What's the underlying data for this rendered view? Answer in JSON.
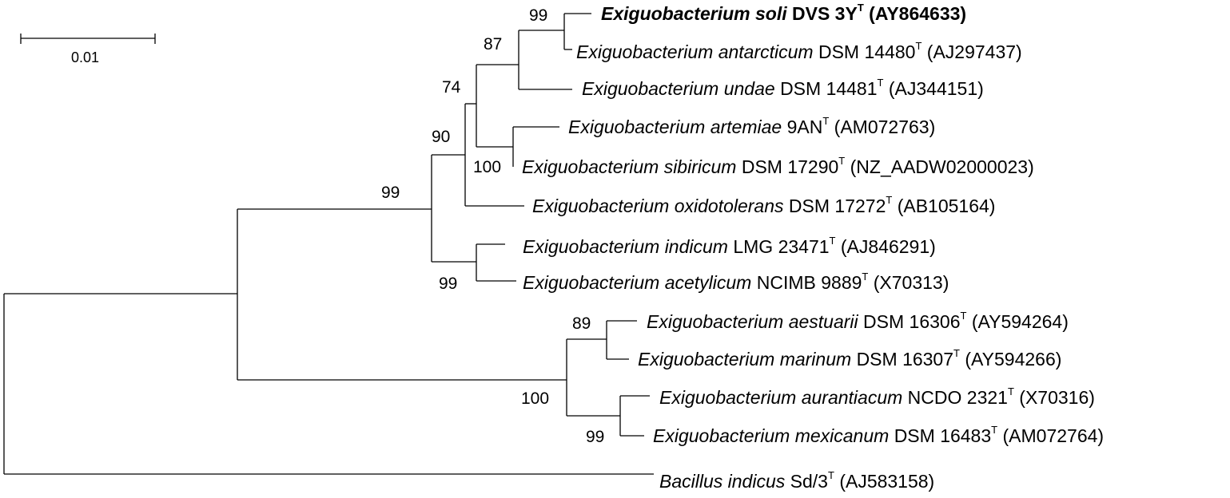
{
  "scale_bar": {
    "label": "0.01"
  },
  "taxa": [
    {
      "genus_species": "Exiguobacterium soli",
      "strain": "DVS 3Y",
      "accession": "(AY864633)",
      "bold": true
    },
    {
      "genus_species": "Exiguobacterium antarcticum",
      "strain": "DSM 14480",
      "accession": "(AJ297437)"
    },
    {
      "genus_species": "Exiguobacterium undae",
      "strain": "DSM 14481",
      "accession": "(AJ344151)"
    },
    {
      "genus_species": "Exiguobacterium artemiae",
      "strain": "9AN",
      "accession": "(AM072763)"
    },
    {
      "genus_species": "Exiguobacterium sibiricum",
      "strain": "DSM 17290",
      "accession": "(NZ_AADW02000023)"
    },
    {
      "genus_species": "Exiguobacterium oxidotolerans",
      "strain": "DSM 17272",
      "accession": "(AB105164)"
    },
    {
      "genus_species": "Exiguobacterium indicum",
      "strain": "LMG 23471",
      "accession": "(AJ846291)"
    },
    {
      "genus_species": "Exiguobacterium acetylicum",
      "strain": "NCIMB 9889",
      "accession": "(X70313)"
    },
    {
      "genus_species": "Exiguobacterium aestuarii",
      "strain": "DSM 16306",
      "accession": "(AY594264)"
    },
    {
      "genus_species": "Exiguobacterium marinum",
      "strain": "DSM 16307",
      "accession": "(AY594266)"
    },
    {
      "genus_species": "Exiguobacterium aurantiacum",
      "strain": "NCDO 2321",
      "accession": "(X70316)"
    },
    {
      "genus_species": "Exiguobacterium mexicanum",
      "strain": "DSM 16483",
      "accession": "(AM072764)"
    },
    {
      "genus_species": "Bacillus indicus",
      "strain": "Sd/3",
      "accession": "(AJ583158)"
    }
  ],
  "type_strain_mark": "T",
  "bootstrap": {
    "soli_antarcticum": "99",
    "undae_clade": "87",
    "artemiae_clade": "74",
    "artemiae_sibiricum": "100",
    "oxidotolerans_clade": "90",
    "indicum_acetylicum": "99",
    "exiguo_main": "99",
    "aestuarii_marinum": "89",
    "aurantiacum_mexicanum": "99",
    "marine_clade": "100"
  }
}
